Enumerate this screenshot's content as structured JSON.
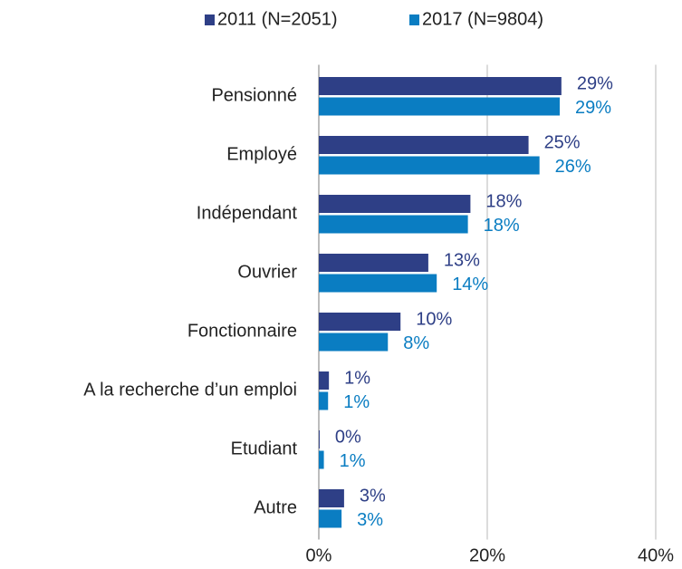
{
  "chart_data": {
    "type": "hbar",
    "categories": [
      "Pensionné",
      "Employé",
      "Indépendant",
      "Ouvrier",
      "Fonctionnaire",
      "A la recherche d’un emploi",
      "Etudiant",
      "Autre"
    ],
    "series": [
      {
        "name": "2011 (N=2051)",
        "color": "#2e3f86",
        "values": [
          28.8,
          24.9,
          18.0,
          13.0,
          9.7,
          1.2,
          0.1,
          3.0
        ],
        "value_labels": [
          "29%",
          "25%",
          "18%",
          "13%",
          "10%",
          "1%",
          "0%",
          "3%"
        ]
      },
      {
        "name": "2017 (N=9804)",
        "color": "#0a7dc2",
        "values": [
          28.6,
          26.2,
          17.7,
          14.0,
          8.2,
          1.1,
          0.6,
          2.7
        ],
        "value_labels": [
          "29%",
          "26%",
          "18%",
          "14%",
          "8%",
          "1%",
          "1%",
          "3%"
        ]
      }
    ],
    "xlim": [
      0,
      40
    ],
    "xticks": [
      {
        "value": 0,
        "label": "0%"
      },
      {
        "value": 20,
        "label": "20%"
      },
      {
        "value": 40,
        "label": "40%"
      }
    ],
    "grid": true,
    "legend": "top"
  }
}
